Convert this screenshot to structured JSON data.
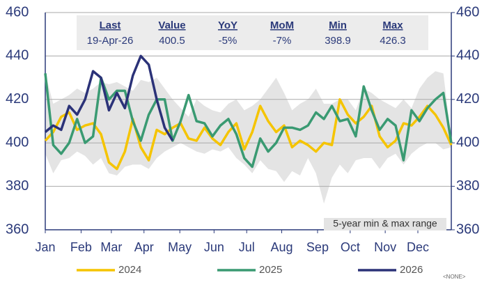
{
  "chart_data": {
    "type": "line",
    "x": [
      1,
      2,
      3,
      4,
      5,
      6,
      7,
      8,
      9,
      10,
      11,
      12,
      13,
      14,
      15,
      16,
      17,
      18,
      19,
      20,
      21,
      22,
      23,
      24,
      25,
      26,
      27,
      28,
      29,
      30,
      31,
      32,
      33,
      34,
      35,
      36,
      37,
      38,
      39,
      40,
      41,
      42,
      43,
      44,
      45,
      46,
      47,
      48,
      49,
      50,
      51,
      52
    ],
    "xlim": [
      1,
      52
    ],
    "xticks": [
      {
        "value": 1,
        "label": "Jan"
      },
      {
        "value": 5.5,
        "label": "Feb"
      },
      {
        "value": 9.3,
        "label": "Mar"
      },
      {
        "value": 13.4,
        "label": "Apr"
      },
      {
        "value": 17.9,
        "label": "May"
      },
      {
        "value": 22.2,
        "label": "Jun"
      },
      {
        "value": 26.3,
        "label": "Jul"
      },
      {
        "value": 30.7,
        "label": "Aug"
      },
      {
        "value": 35.2,
        "label": "Sep"
      },
      {
        "value": 39.3,
        "label": "Oct"
      },
      {
        "value": 43.7,
        "label": "Nov"
      },
      {
        "value": 47.8,
        "label": "Dec"
      }
    ],
    "ylim": [
      360,
      460
    ],
    "yticks": [
      360,
      380,
      400,
      420,
      440,
      460
    ],
    "y2lim": [
      360,
      460
    ],
    "y2ticks": [
      360,
      380,
      400,
      420,
      440,
      460
    ],
    "grid": true,
    "band": {
      "color": "#e4e4e4",
      "label": "5-year min & max range",
      "max": [
        432,
        418,
        420,
        422,
        425,
        423,
        425,
        428,
        427,
        428,
        426,
        424,
        429,
        428,
        430,
        425,
        420,
        416,
        412,
        420,
        417,
        415,
        414,
        418,
        420,
        415,
        417,
        420,
        425,
        430,
        423,
        415,
        418,
        420,
        425,
        418,
        418,
        420,
        420,
        415,
        425,
        423,
        420,
        418,
        416,
        420,
        416,
        425,
        430,
        433,
        432,
        402
      ],
      "min": [
        395,
        386,
        392,
        393,
        396,
        394,
        390,
        393,
        386,
        385,
        389,
        390,
        390,
        388,
        393,
        396,
        398,
        400,
        398,
        396,
        395,
        397,
        396,
        398,
        393,
        390,
        386,
        392,
        388,
        387,
        382,
        387,
        385,
        393,
        386,
        372,
        384,
        390,
        386,
        392,
        393,
        393,
        388,
        393,
        395,
        390,
        395,
        398,
        400,
        400,
        397,
        398
      ]
    },
    "series": [
      {
        "name": "2024",
        "color": "#f5c400",
        "values": [
          401,
          405,
          412,
          414,
          406,
          408,
          409,
          404,
          391,
          388,
          396,
          411,
          398,
          392,
          406,
          404,
          407,
          409,
          402,
          401,
          407,
          402,
          399,
          405,
          409,
          397,
          405,
          417,
          410,
          405,
          408,
          398,
          401,
          399,
          396,
          400,
          399,
          420,
          413,
          409,
          412,
          417,
          403,
          398,
          401,
          409,
          408,
          412,
          417,
          413,
          407,
          399
        ]
      },
      {
        "name": "2025",
        "color": "#3a9a72",
        "values": [
          432,
          399,
          395,
          400,
          411,
          400,
          403,
          430,
          420,
          424,
          424,
          410,
          401,
          413,
          420,
          420,
          401,
          410,
          422,
          410,
          409,
          403,
          408,
          411,
          404,
          393,
          389,
          402,
          396,
          400,
          407,
          407,
          406,
          408,
          414,
          411,
          417,
          410,
          411,
          403,
          426,
          415,
          406,
          411,
          408,
          392,
          415,
          410,
          416,
          420,
          423,
          400
        ]
      },
      {
        "name": "2026",
        "color": "#2b3278",
        "values": [
          405,
          408,
          406,
          417,
          413,
          420,
          433,
          430,
          415,
          423,
          416,
          431,
          440,
          436,
          420,
          407,
          401,
          null,
          null,
          null,
          null,
          null,
          null,
          null,
          null,
          null,
          null,
          null,
          null,
          null,
          null,
          null,
          null,
          null,
          null,
          null,
          null,
          null,
          null,
          null,
          null,
          null,
          null,
          null,
          null,
          null,
          null,
          null,
          null,
          null,
          null,
          null
        ]
      }
    ],
    "stats": {
      "headers": [
        "Last",
        "Value",
        "YoY",
        "MoM",
        "Min",
        "Max"
      ],
      "values": [
        "19-Apr-26",
        "400.5",
        "-5%",
        "-7%",
        "398.9",
        "426.3"
      ]
    },
    "note": "<NONE>"
  }
}
